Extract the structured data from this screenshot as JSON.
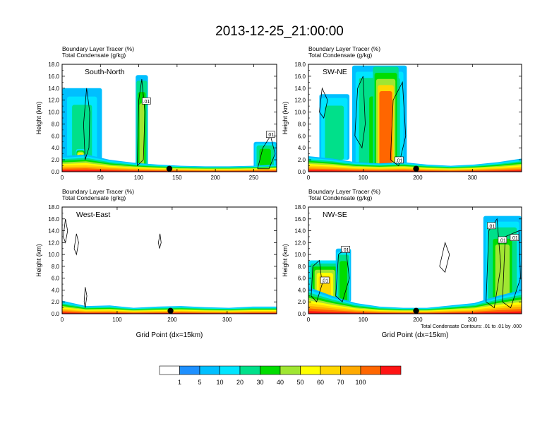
{
  "page_title": "2013-12-25_21:00:00",
  "chart_data": [
    {
      "type": "heatmap",
      "id": "p1",
      "panel_label": "South-North",
      "subtitle_lines": [
        "Boundary Layer Tracer   (%)",
        "Total Condensate   (g/kg)"
      ],
      "ylabel": "Height (km)",
      "xlabel": "",
      "ylim": [
        0,
        18
      ],
      "xlim": [
        0,
        280
      ],
      "yticks": [
        "0.0",
        "2.0",
        "4.0",
        "6.0",
        "8.0",
        "10.0",
        "12.0",
        "14.0",
        "16.0",
        "18.0"
      ],
      "xticks": [
        {
          "v": 0,
          "l": "0"
        },
        {
          "v": 50,
          "l": "50"
        },
        {
          "v": 100,
          "l": "100"
        },
        {
          "v": 150,
          "l": "150"
        },
        {
          "v": 200,
          "l": "200"
        },
        {
          "v": 250,
          "l": "250"
        }
      ],
      "contour_labels": [
        {
          "text": ".01",
          "x": 110,
          "y": 11.8
        },
        {
          "text": ".01",
          "x": 272,
          "y": 6.2
        }
      ],
      "marker_point": {
        "x": 140,
        "y": 0.5
      },
      "surface_layer_heights_km": [
        2.6,
        2.9,
        2.0,
        1.5,
        1.2,
        1.0,
        0.9,
        0.9,
        1.0,
        1.2
      ],
      "plumes": [
        {
          "x0": 0,
          "x1": 52,
          "y_bottom": 2,
          "y_top": 14.0,
          "peak": 15
        },
        {
          "x0": 18,
          "x1": 30,
          "y_bottom": 0,
          "y_top": 3.8,
          "peak": 75
        },
        {
          "x0": 96,
          "x1": 112,
          "y_bottom": 0,
          "y_top": 16.2,
          "peak": 35
        },
        {
          "x0": 250,
          "x1": 280,
          "y_bottom": 0,
          "y_top": 5.0,
          "peak": 25
        }
      ],
      "contours": [
        {
          "points": [
            [
              30,
              2
            ],
            [
              28,
              8
            ],
            [
              32,
              14
            ],
            [
              36,
              10
            ],
            [
              35,
              4
            ],
            [
              30,
              2
            ]
          ]
        },
        {
          "points": [
            [
              98,
              1
            ],
            [
              100,
              12
            ],
            [
              104,
              15.5
            ],
            [
              108,
              10
            ],
            [
              106,
              2
            ],
            [
              98,
              1
            ]
          ]
        },
        {
          "points": [
            [
              255,
              0.5
            ],
            [
              262,
              4
            ],
            [
              272,
              6
            ],
            [
              278,
              3
            ],
            [
              270,
              0.5
            ],
            [
              255,
              0.5
            ]
          ]
        }
      ]
    },
    {
      "type": "heatmap",
      "id": "p2",
      "panel_label": "SW-NE",
      "subtitle_lines": [
        "Boundary Layer Tracer   (%)",
        "Total Condensate   (g/kg)"
      ],
      "ylabel": "Height (km)",
      "xlabel": "",
      "ylim": [
        0,
        18
      ],
      "xlim": [
        0,
        390
      ],
      "yticks": [
        "0.0",
        "2.0",
        "4.0",
        "6.0",
        "8.0",
        "10.0",
        "12.0",
        "14.0",
        "16.0",
        "18.0"
      ],
      "xticks": [
        {
          "v": 0,
          "l": "0"
        },
        {
          "v": 100,
          "l": "100"
        },
        {
          "v": 200,
          "l": "200"
        },
        {
          "v": 300,
          "l": "300"
        }
      ],
      "contour_labels": [
        {
          "text": ".01",
          "x": 166,
          "y": 1.9
        }
      ],
      "marker_point": {
        "x": 197,
        "y": 0.5
      },
      "surface_layer_heights_km": [
        2.6,
        2.2,
        1.6,
        1.4,
        1.6,
        1.2,
        1.0,
        1.2,
        1.6,
        2.2
      ],
      "plumes": [
        {
          "x0": 20,
          "x1": 75,
          "y_bottom": 2,
          "y_top": 13.0,
          "peak": 18
        },
        {
          "x0": 80,
          "x1": 180,
          "y_bottom": 0,
          "y_top": 17.8,
          "peak": 22
        },
        {
          "x0": 118,
          "x1": 165,
          "y_bottom": 0,
          "y_top": 17.6,
          "peak": 90
        }
      ],
      "contours": [
        {
          "points": [
            [
              20,
              10
            ],
            [
              25,
              14
            ],
            [
              35,
              12
            ],
            [
              28,
              9
            ],
            [
              20,
              10
            ]
          ]
        },
        {
          "points": [
            [
              85,
              6
            ],
            [
              90,
              14
            ],
            [
              100,
              16
            ],
            [
              104,
              8
            ],
            [
              98,
              4
            ],
            [
              85,
              6
            ]
          ]
        },
        {
          "points": [
            [
              150,
              2
            ],
            [
              155,
              12
            ],
            [
              172,
              15
            ],
            [
              178,
              6
            ],
            [
              165,
              1
            ],
            [
              150,
              2
            ]
          ]
        }
      ]
    },
    {
      "type": "heatmap",
      "id": "p3",
      "panel_label": "West-East",
      "subtitle_lines": [
        "Boundary Layer Tracer   (%)",
        "Total Condensate   (g/kg)"
      ],
      "ylabel": "Height (km)",
      "xlabel": "Grid Point (dx=15km)",
      "ylim": [
        0,
        18
      ],
      "xlim": [
        0,
        390
      ],
      "yticks": [
        "0.0",
        "2.0",
        "4.0",
        "6.0",
        "8.0",
        "10.0",
        "12.0",
        "14.0",
        "16.0",
        "18.0"
      ],
      "xticks": [
        {
          "v": 0,
          "l": "0"
        },
        {
          "v": 100,
          "l": "100"
        },
        {
          "v": 200,
          "l": "200"
        },
        {
          "v": 300,
          "l": "300"
        }
      ],
      "contour_labels": [],
      "marker_point": {
        "x": 197,
        "y": 0.5
      },
      "surface_layer_heights_km": [
        2.2,
        1.3,
        1.4,
        1.0,
        1.2,
        1.3,
        1.1,
        1.0,
        1.2,
        1.2
      ],
      "plumes": [],
      "contours": [
        {
          "points": [
            [
              2,
              13
            ],
            [
              6,
              16
            ],
            [
              10,
              14
            ],
            [
              6,
              12
            ],
            [
              2,
              13
            ]
          ]
        },
        {
          "points": [
            [
              22,
              11
            ],
            [
              26,
              13.5
            ],
            [
              30,
              12
            ],
            [
              26,
              10
            ],
            [
              22,
              11
            ]
          ]
        },
        {
          "points": [
            [
              175,
              12
            ],
            [
              178,
              13.5
            ],
            [
              180,
              12
            ],
            [
              177,
              11
            ],
            [
              175,
              12
            ]
          ]
        },
        {
          "points": [
            [
              40,
              2
            ],
            [
              42,
              4.5
            ],
            [
              45,
              3
            ],
            [
              42,
              1
            ],
            [
              40,
              2
            ]
          ]
        }
      ]
    },
    {
      "type": "heatmap",
      "id": "p4",
      "panel_label": "NW-SE",
      "subtitle_lines": [
        "Boundary Layer Tracer   (%)",
        "Total Condensate   (g/kg)"
      ],
      "ylabel": "Height (km)",
      "xlabel": "Grid Point (dx=15km)",
      "footnote": "Total Condensate Contours: .01 to .01 by .000",
      "ylim": [
        0,
        18
      ],
      "xlim": [
        0,
        390
      ],
      "yticks": [
        "0.0",
        "2.0",
        "4.0",
        "6.0",
        "8.0",
        "10.0",
        "12.0",
        "14.0",
        "16.0",
        "18.0"
      ],
      "xticks": [
        {
          "v": 0,
          "l": "0"
        },
        {
          "v": 100,
          "l": "100"
        },
        {
          "v": 200,
          "l": "200"
        },
        {
          "v": 300,
          "l": "300"
        }
      ],
      "contour_labels": [
        {
          "text": ".01",
          "x": 30,
          "y": 5.6
        },
        {
          "text": ".01",
          "x": 68,
          "y": 10.8
        },
        {
          "text": ".01",
          "x": 335,
          "y": 14.8
        },
        {
          "text": ".01",
          "x": 355,
          "y": 12.4
        },
        {
          "text": ".01",
          "x": 377,
          "y": 12.8
        }
      ],
      "marker_point": {
        "x": 197,
        "y": 0.5
      },
      "surface_layer_heights_km": [
        4.5,
        3.0,
        1.8,
        1.2,
        1.0,
        1.0,
        1.4,
        1.8,
        3.0,
        4.0
      ],
      "plumes": [
        {
          "x0": 0,
          "x1": 60,
          "y_bottom": 0,
          "y_top": 9.0,
          "peak": 55
        },
        {
          "x0": 50,
          "x1": 78,
          "y_bottom": 2,
          "y_top": 11.0,
          "peak": 25
        },
        {
          "x0": 320,
          "x1": 390,
          "y_bottom": 0,
          "y_top": 16.5,
          "peak": 30
        }
      ],
      "contours": [
        {
          "points": [
            [
              5,
              3
            ],
            [
              8,
              8
            ],
            [
              20,
              9
            ],
            [
              25,
              5
            ],
            [
              15,
              2
            ],
            [
              5,
              3
            ]
          ]
        },
        {
          "points": [
            [
              50,
              3
            ],
            [
              55,
              10
            ],
            [
              68,
              11
            ],
            [
              75,
              6
            ],
            [
              62,
              2
            ],
            [
              50,
              3
            ]
          ]
        },
        {
          "points": [
            [
              240,
              8
            ],
            [
              250,
              12
            ],
            [
              258,
              10
            ],
            [
              250,
              7
            ],
            [
              240,
              8
            ]
          ]
        },
        {
          "points": [
            [
              325,
              2
            ],
            [
              330,
              14
            ],
            [
              345,
              16
            ],
            [
              352,
              8
            ],
            [
              340,
              1
            ],
            [
              325,
              2
            ]
          ]
        },
        {
          "points": [
            [
              355,
              2
            ],
            [
              360,
              13
            ],
            [
              385,
              14
            ],
            [
              388,
              6
            ],
            [
              370,
              1
            ],
            [
              355,
              2
            ]
          ]
        }
      ]
    },
    {
      "type": "colorbar",
      "id": "colorbar",
      "levels": [
        "1",
        "5",
        "10",
        "20",
        "30",
        "40",
        "50",
        "60",
        "70",
        "100"
      ],
      "colors": [
        "#ffffff",
        "#1e90ff",
        "#00bfff",
        "#00e5ff",
        "#00e08a",
        "#00dd00",
        "#a0e632",
        "#ffff00",
        "#ffd700",
        "#ffaa00",
        "#ff6600",
        "#ff1414"
      ]
    }
  ]
}
